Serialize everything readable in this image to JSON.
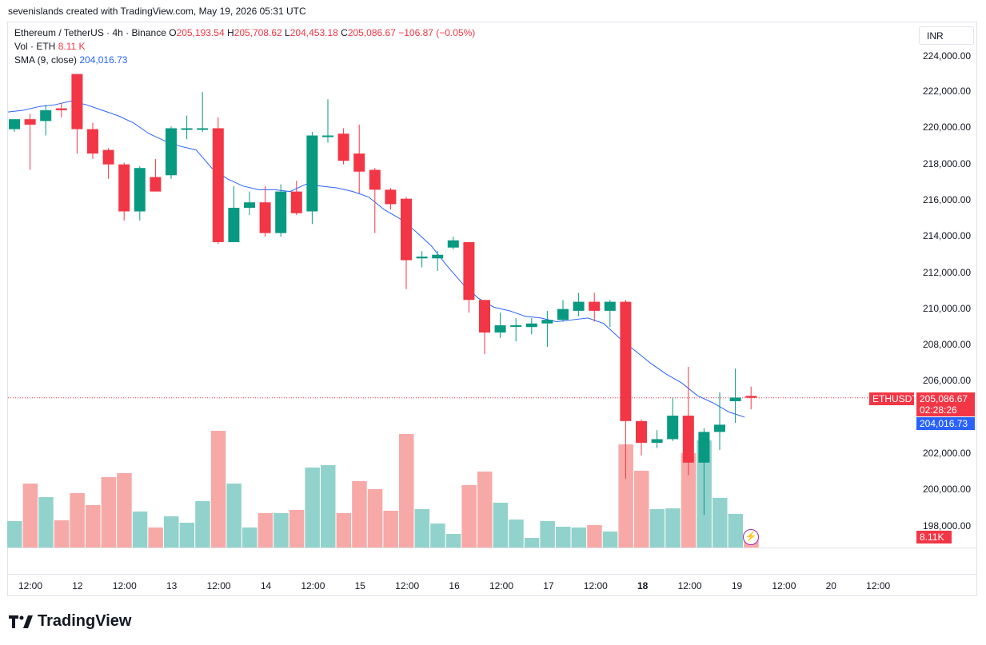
{
  "header": {
    "credit": "sevenislands created with TradingView.com, May 19, 2026 05:31 UTC"
  },
  "legend": {
    "symbol": "Ethereum / TetherUS · 4h · Binance",
    "o_label": "O",
    "o_value": "205,193.54",
    "h_label": "H",
    "h_value": "205,708.62",
    "l_label": "L",
    "l_value": "204,453.18",
    "c_label": "C",
    "c_value": "205,086.67",
    "change": "−106.87 (−0.05%)",
    "vol_label": "Vol · ETH",
    "vol_value": "8.11 K",
    "sma_label": "SMA (9, close)",
    "sma_value": "204,016.73"
  },
  "currency_button": "INR",
  "price_axis": {
    "ticks": [
      "224,000.00",
      "222,000.00",
      "220,000.00",
      "218,000.00",
      "216,000.00",
      "214,000.00",
      "212,000.00",
      "210,000.00",
      "208,000.00",
      "206,000.00",
      "202,000.00",
      "200,000.00",
      "198,000.00"
    ]
  },
  "tags": {
    "symbol_tag": "ETHUSDT",
    "last_price": "205,086.67",
    "countdown": "02:28:26",
    "sma_tag": "204,016.73",
    "volume_tag": "8.11K"
  },
  "time_axis": {
    "ticks": [
      "12:00",
      "12",
      "12:00",
      "13",
      "12:00",
      "14",
      "12:00",
      "15",
      "12:00",
      "16",
      "12:00",
      "17",
      "12:00",
      "18",
      "12:00",
      "19",
      "12:00",
      "20",
      "12:00"
    ]
  },
  "footer": {
    "brand": "TradingView"
  },
  "colors": {
    "up": "#089981",
    "down": "#f23645",
    "up_vol": "#92d2cc",
    "down_vol": "#f7a9a7",
    "sma": "#2962ff"
  },
  "chart_data": {
    "type": "candlestick",
    "title": "Ethereum / TetherUS · 4h · Binance",
    "ylim": [
      197000,
      225000
    ],
    "candles": [
      {
        "o": 219950,
        "h": 220500,
        "l": 219800,
        "c": 220500
      },
      {
        "o": 220500,
        "h": 220800,
        "l": 217700,
        "c": 220200
      },
      {
        "o": 220400,
        "h": 221300,
        "l": 219600,
        "c": 221000
      },
      {
        "o": 221100,
        "h": 221400,
        "l": 220600,
        "c": 221000
      },
      {
        "o": 223000,
        "h": 223000,
        "l": 218600,
        "c": 219950
      },
      {
        "o": 219950,
        "h": 220300,
        "l": 218300,
        "c": 218600
      },
      {
        "o": 218800,
        "h": 218900,
        "l": 217200,
        "c": 218000
      },
      {
        "o": 218000,
        "h": 218100,
        "l": 214900,
        "c": 215400
      },
      {
        "o": 215400,
        "h": 217900,
        "l": 214900,
        "c": 217800
      },
      {
        "o": 217300,
        "h": 218300,
        "l": 216700,
        "c": 216500
      },
      {
        "o": 217400,
        "h": 220100,
        "l": 217200,
        "c": 220000
      },
      {
        "o": 220000,
        "h": 220700,
        "l": 219400,
        "c": 220000
      },
      {
        "o": 220000,
        "h": 222000,
        "l": 219800,
        "c": 220000
      },
      {
        "o": 220000,
        "h": 220600,
        "l": 213600,
        "c": 213700
      },
      {
        "o": 213700,
        "h": 216800,
        "l": 213700,
        "c": 215600
      },
      {
        "o": 215600,
        "h": 216500,
        "l": 215200,
        "c": 215900
      },
      {
        "o": 215900,
        "h": 216800,
        "l": 214000,
        "c": 214200
      },
      {
        "o": 214200,
        "h": 216900,
        "l": 214000,
        "c": 216500
      },
      {
        "o": 216500,
        "h": 217100,
        "l": 215200,
        "c": 215300
      },
      {
        "o": 215400,
        "h": 219800,
        "l": 214700,
        "c": 219600
      },
      {
        "o": 219600,
        "h": 221600,
        "l": 219200,
        "c": 219600
      },
      {
        "o": 219700,
        "h": 220000,
        "l": 218000,
        "c": 218200
      },
      {
        "o": 218600,
        "h": 220200,
        "l": 216400,
        "c": 217600
      },
      {
        "o": 217700,
        "h": 217800,
        "l": 214200,
        "c": 216600
      },
      {
        "o": 216600,
        "h": 216700,
        "l": 215500,
        "c": 215800
      },
      {
        "o": 216100,
        "h": 216200,
        "l": 211100,
        "c": 212700
      },
      {
        "o": 212800,
        "h": 213200,
        "l": 212300,
        "c": 212900
      },
      {
        "o": 212800,
        "h": 213200,
        "l": 212100,
        "c": 213000
      },
      {
        "o": 213400,
        "h": 214000,
        "l": 213300,
        "c": 213800
      },
      {
        "o": 213700,
        "h": 213700,
        "l": 209800,
        "c": 210500
      },
      {
        "o": 210500,
        "h": 210500,
        "l": 207500,
        "c": 208700
      },
      {
        "o": 208700,
        "h": 209800,
        "l": 208400,
        "c": 209100
      },
      {
        "o": 209100,
        "h": 209500,
        "l": 208200,
        "c": 209100
      },
      {
        "o": 209000,
        "h": 209500,
        "l": 208600,
        "c": 209200
      },
      {
        "o": 209200,
        "h": 209900,
        "l": 207900,
        "c": 209400
      },
      {
        "o": 209400,
        "h": 210500,
        "l": 209300,
        "c": 210000
      },
      {
        "o": 209900,
        "h": 210900,
        "l": 209600,
        "c": 210400
      },
      {
        "o": 210400,
        "h": 210900,
        "l": 209300,
        "c": 209900
      },
      {
        "o": 209900,
        "h": 210500,
        "l": 209000,
        "c": 210400
      },
      {
        "o": 210400,
        "h": 210500,
        "l": 200600,
        "c": 203800
      },
      {
        "o": 203800,
        "h": 203900,
        "l": 201900,
        "c": 202600
      },
      {
        "o": 202600,
        "h": 203300,
        "l": 202300,
        "c": 202800
      },
      {
        "o": 202800,
        "h": 205100,
        "l": 202700,
        "c": 204100
      },
      {
        "o": 204100,
        "h": 206800,
        "l": 200800,
        "c": 201500
      },
      {
        "o": 201500,
        "h": 203400,
        "l": 198600,
        "c": 203200
      },
      {
        "o": 203200,
        "h": 205400,
        "l": 202200,
        "c": 203600
      },
      {
        "o": 204900,
        "h": 206700,
        "l": 203700,
        "c": 205100
      },
      {
        "o": 205193.54,
        "h": 205708.62,
        "l": 204453.18,
        "c": 205086.67
      }
    ],
    "volume_relative": [
      0.33,
      0.8,
      0.63,
      0.34,
      0.68,
      0.53,
      0.88,
      0.93,
      0.45,
      0.25,
      0.39,
      0.31,
      0.58,
      1.46,
      0.8,
      0.25,
      0.43,
      0.43,
      0.47,
      1.0,
      1.03,
      0.43,
      0.83,
      0.73,
      0.46,
      1.42,
      0.48,
      0.3,
      0.17,
      0.78,
      0.95,
      0.56,
      0.35,
      0.12,
      0.33,
      0.26,
      0.25,
      0.28,
      0.2,
      1.29,
      0.96,
      0.48,
      0.49,
      1.18,
      1.34,
      0.62,
      0.42,
      0.17
    ],
    "sma": [
      220900,
      221000,
      221200,
      221300,
      221500,
      221300,
      221000,
      220700,
      220300,
      219700,
      219300,
      219000,
      218800,
      217800,
      217200,
      216800,
      216600,
      216600,
      216500,
      216900,
      216800,
      216700,
      216500,
      216200,
      215500,
      215000,
      214300,
      213500,
      212400,
      211400,
      210600,
      210100,
      209900,
      209600,
      209500,
      209300,
      209400,
      209500,
      209200,
      208400,
      207700,
      207000,
      206400,
      205900,
      205200,
      204800,
      204300,
      204016.73
    ]
  }
}
